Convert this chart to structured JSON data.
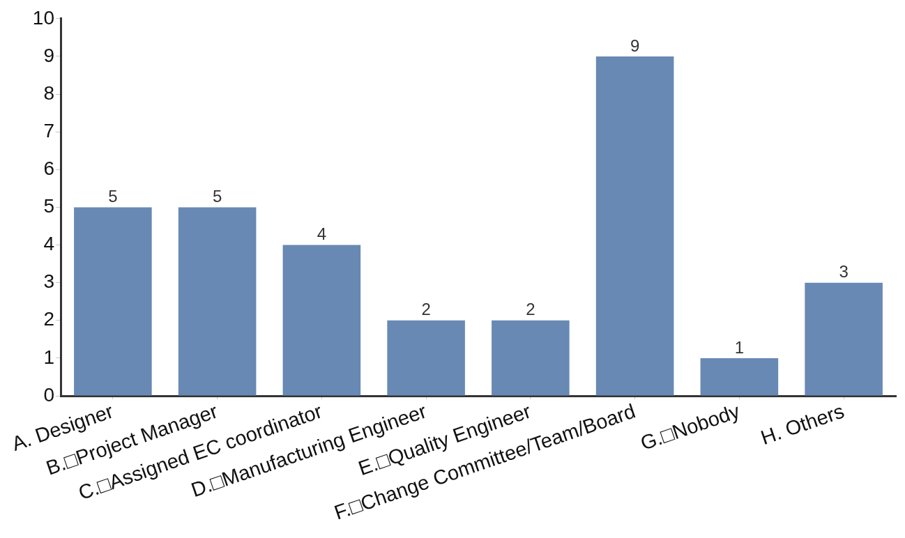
{
  "chart_data": {
    "type": "bar",
    "categories": [
      "A. Designer",
      "B.□Project Manager",
      "C.□Assigned EC coordinator",
      "D.□Manufacturing Engineer",
      "E.□Quality Engineer",
      "F.□Change Committee/Team/Board",
      "G.□Nobody",
      "H. Others"
    ],
    "values": [
      5,
      5,
      4,
      2,
      2,
      9,
      1,
      3
    ],
    "color": "#6789b4",
    "ylim": [
      0,
      10
    ],
    "yticks": [
      0,
      1,
      2,
      3,
      4,
      5,
      6,
      7,
      8,
      9,
      10
    ],
    "grid": false,
    "data_labels": true
  }
}
